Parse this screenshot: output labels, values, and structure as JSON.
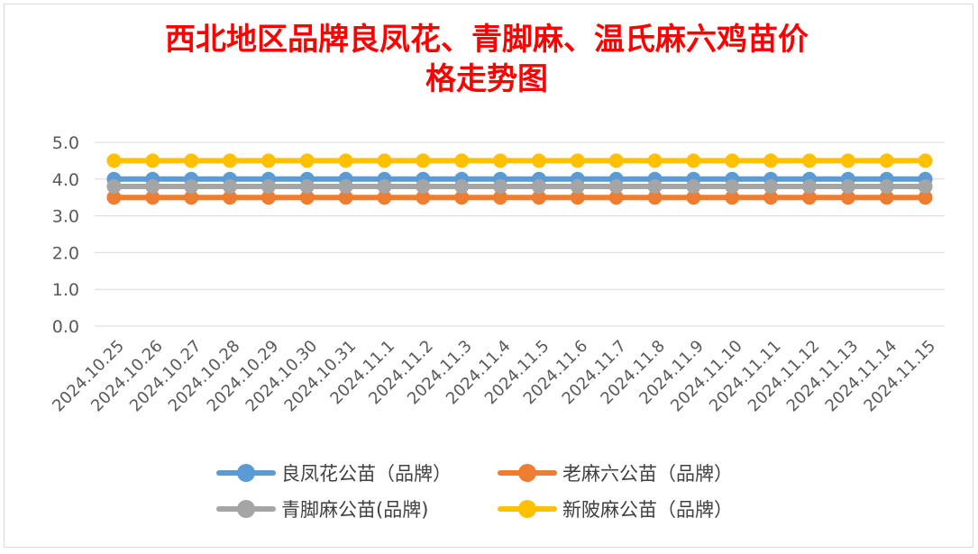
{
  "chart_data": {
    "type": "line",
    "title": "西北地区品牌良凤花、青脚麻、温氏麻六鸡苗价格走势图",
    "title_lines": [
      "西北地区品牌良凤花、青脚麻、温氏麻六鸡苗价",
      "格走势图"
    ],
    "title_color": "#ff0000",
    "xlabel": "",
    "ylabel": "",
    "ylim": [
      0,
      5
    ],
    "yticks": [
      "5.0",
      "4.0",
      "3.0",
      "2.0",
      "1.0",
      "0.0"
    ],
    "grid": true,
    "legend_position": "bottom",
    "categories": [
      "2024.10.25",
      "2024.10.26",
      "2024.10.27",
      "2024.10.28",
      "2024.10.29",
      "2024.10.30",
      "2024.10.31",
      "2024.11.1",
      "2024.11.2",
      "2024.11.3",
      "2024.11.4",
      "2024.11.5",
      "2024.11.6",
      "2024.11.7",
      "2024.11.8",
      "2024.11.9",
      "2024.11.10",
      "2024.11.11",
      "2024.11.12",
      "2024.11.13",
      "2024.11.14",
      "2024.11.15"
    ],
    "series": [
      {
        "name": "良凤花公苗（品牌）",
        "color": "#5b9bd5",
        "values": [
          4.0,
          4.0,
          4.0,
          4.0,
          4.0,
          4.0,
          4.0,
          4.0,
          4.0,
          4.0,
          4.0,
          4.0,
          4.0,
          4.0,
          4.0,
          4.0,
          4.0,
          4.0,
          4.0,
          4.0,
          4.0,
          4.0
        ]
      },
      {
        "name": "老麻六公苗（品牌）",
        "color": "#ed7d31",
        "values": [
          3.5,
          3.5,
          3.5,
          3.5,
          3.5,
          3.5,
          3.5,
          3.5,
          3.5,
          3.5,
          3.5,
          3.5,
          3.5,
          3.5,
          3.5,
          3.5,
          3.5,
          3.5,
          3.5,
          3.5,
          3.5,
          3.5
        ]
      },
      {
        "name": "青脚麻公苗(品牌)",
        "color": "#a5a5a5",
        "values": [
          3.8,
          3.8,
          3.8,
          3.8,
          3.8,
          3.8,
          3.8,
          3.8,
          3.8,
          3.8,
          3.8,
          3.8,
          3.8,
          3.8,
          3.8,
          3.8,
          3.8,
          3.8,
          3.8,
          3.8,
          3.8,
          3.8
        ]
      },
      {
        "name": "新陂麻公苗（品牌）",
        "color": "#ffc000",
        "values": [
          4.5,
          4.5,
          4.5,
          4.5,
          4.5,
          4.5,
          4.5,
          4.5,
          4.5,
          4.5,
          4.5,
          4.5,
          4.5,
          4.5,
          4.5,
          4.5,
          4.5,
          4.5,
          4.5,
          4.5,
          4.5,
          4.5
        ]
      }
    ]
  }
}
